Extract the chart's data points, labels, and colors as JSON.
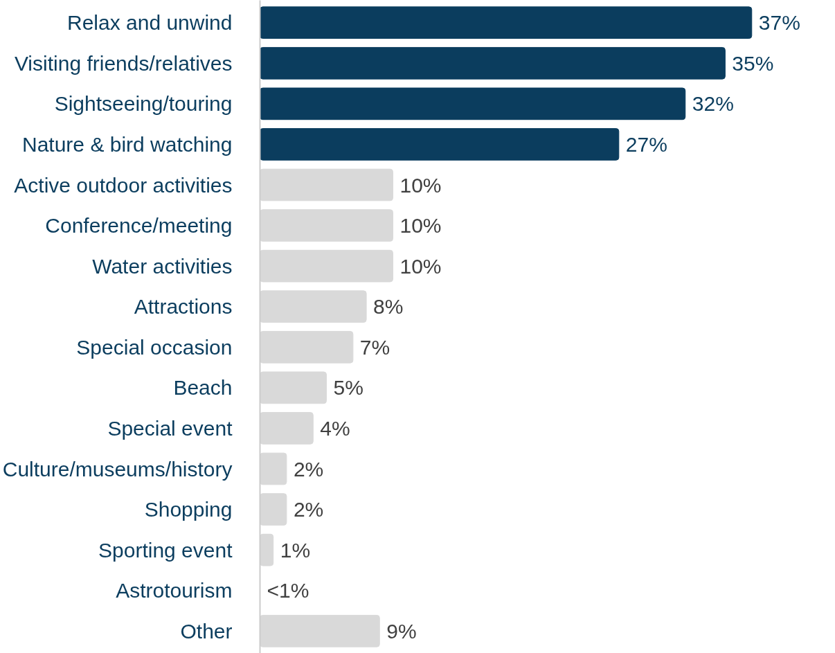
{
  "chart_data": {
    "type": "bar",
    "orientation": "horizontal",
    "categories": [
      "Relax and unwind",
      "Visiting friends/relatives",
      "Sightseeing/touring",
      "Nature & bird watching",
      "Active outdoor activities",
      "Conference/meeting",
      "Water activities",
      "Attractions",
      "Special occasion",
      "Beach",
      "Special event",
      "Culture/museums/history",
      "Shopping",
      "Sporting event",
      "Astrotourism",
      "Other"
    ],
    "values": [
      37,
      35,
      32,
      27,
      10,
      10,
      10,
      8,
      7,
      5,
      4,
      2,
      2,
      1,
      0,
      9
    ],
    "value_labels": [
      "37%",
      "35%",
      "32%",
      "27%",
      "10%",
      "10%",
      "10%",
      "8%",
      "7%",
      "5%",
      "4%",
      "2%",
      "2%",
      "1%",
      "<1%",
      "9%"
    ],
    "colors": [
      "#0b3d5e",
      "#0b3d5e",
      "#0b3d5e",
      "#0b3d5e",
      "#d9d9d9",
      "#d9d9d9",
      "#d9d9d9",
      "#d9d9d9",
      "#d9d9d9",
      "#d9d9d9",
      "#d9d9d9",
      "#d9d9d9",
      "#d9d9d9",
      "#d9d9d9",
      "#d9d9d9",
      "#d9d9d9"
    ]
  }
}
